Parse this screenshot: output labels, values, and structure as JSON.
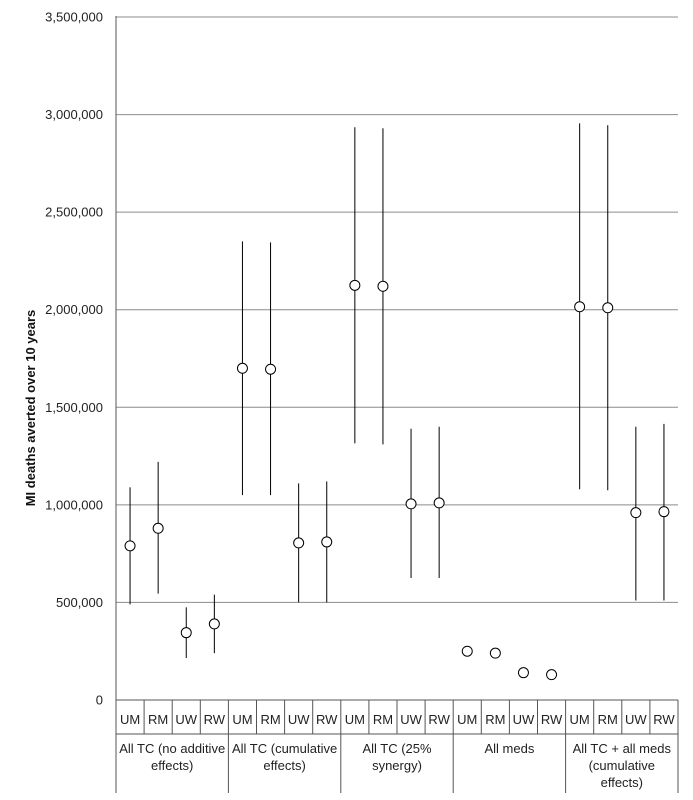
{
  "chart_data": {
    "type": "scatter",
    "title": "",
    "xlabel": "",
    "ylabel": "MI deaths averted over 10 years",
    "ylim": [
      0,
      3500000
    ],
    "yticks": [
      "0",
      "500,000",
      "1,000,000",
      "1,500,000",
      "2,000,000",
      "2,500,000",
      "3,000,000",
      "3,500,000"
    ],
    "grid": true,
    "groups": [
      {
        "label": [
          "All TC (no additive",
          "effects)"
        ],
        "points": [
          {
            "category": "UM",
            "value": 790000,
            "low": 490000,
            "high": 1090000
          },
          {
            "category": "RM",
            "value": 880000,
            "low": 545000,
            "high": 1220000
          },
          {
            "category": "UW",
            "value": 345000,
            "low": 215000,
            "high": 475000
          },
          {
            "category": "RW",
            "value": 390000,
            "low": 240000,
            "high": 540000
          }
        ]
      },
      {
        "label": [
          "All TC (cumulative",
          "effects)"
        ],
        "points": [
          {
            "category": "UM",
            "value": 1700000,
            "low": 1050000,
            "high": 2350000
          },
          {
            "category": "RM",
            "value": 1695000,
            "low": 1050000,
            "high": 2345000
          },
          {
            "category": "UW",
            "value": 805000,
            "low": 500000,
            "high": 1110000
          },
          {
            "category": "RW",
            "value": 810000,
            "low": 500000,
            "high": 1120000
          }
        ]
      },
      {
        "label": [
          "All TC (25%",
          "synergy)"
        ],
        "points": [
          {
            "category": "UM",
            "value": 2125000,
            "low": 1315000,
            "high": 2935000
          },
          {
            "category": "RM",
            "value": 2120000,
            "low": 1310000,
            "high": 2930000
          },
          {
            "category": "UW",
            "value": 1005000,
            "low": 625000,
            "high": 1390000
          },
          {
            "category": "RW",
            "value": 1010000,
            "low": 625000,
            "high": 1400000
          }
        ]
      },
      {
        "label": [
          "All meds"
        ],
        "points": [
          {
            "category": "UM",
            "value": 250000
          },
          {
            "category": "RM",
            "value": 240000
          },
          {
            "category": "UW",
            "value": 140000
          },
          {
            "category": "RW",
            "value": 130000
          }
        ]
      },
      {
        "label": [
          "All TC + all meds",
          "(cumulative",
          "effects)"
        ],
        "points": [
          {
            "category": "UM",
            "value": 2015000,
            "low": 1080000,
            "high": 2955000
          },
          {
            "category": "RM",
            "value": 2010000,
            "low": 1075000,
            "high": 2945000
          },
          {
            "category": "UW",
            "value": 960000,
            "low": 510000,
            "high": 1400000
          },
          {
            "category": "RW",
            "value": 965000,
            "low": 510000,
            "high": 1415000
          }
        ]
      }
    ]
  }
}
